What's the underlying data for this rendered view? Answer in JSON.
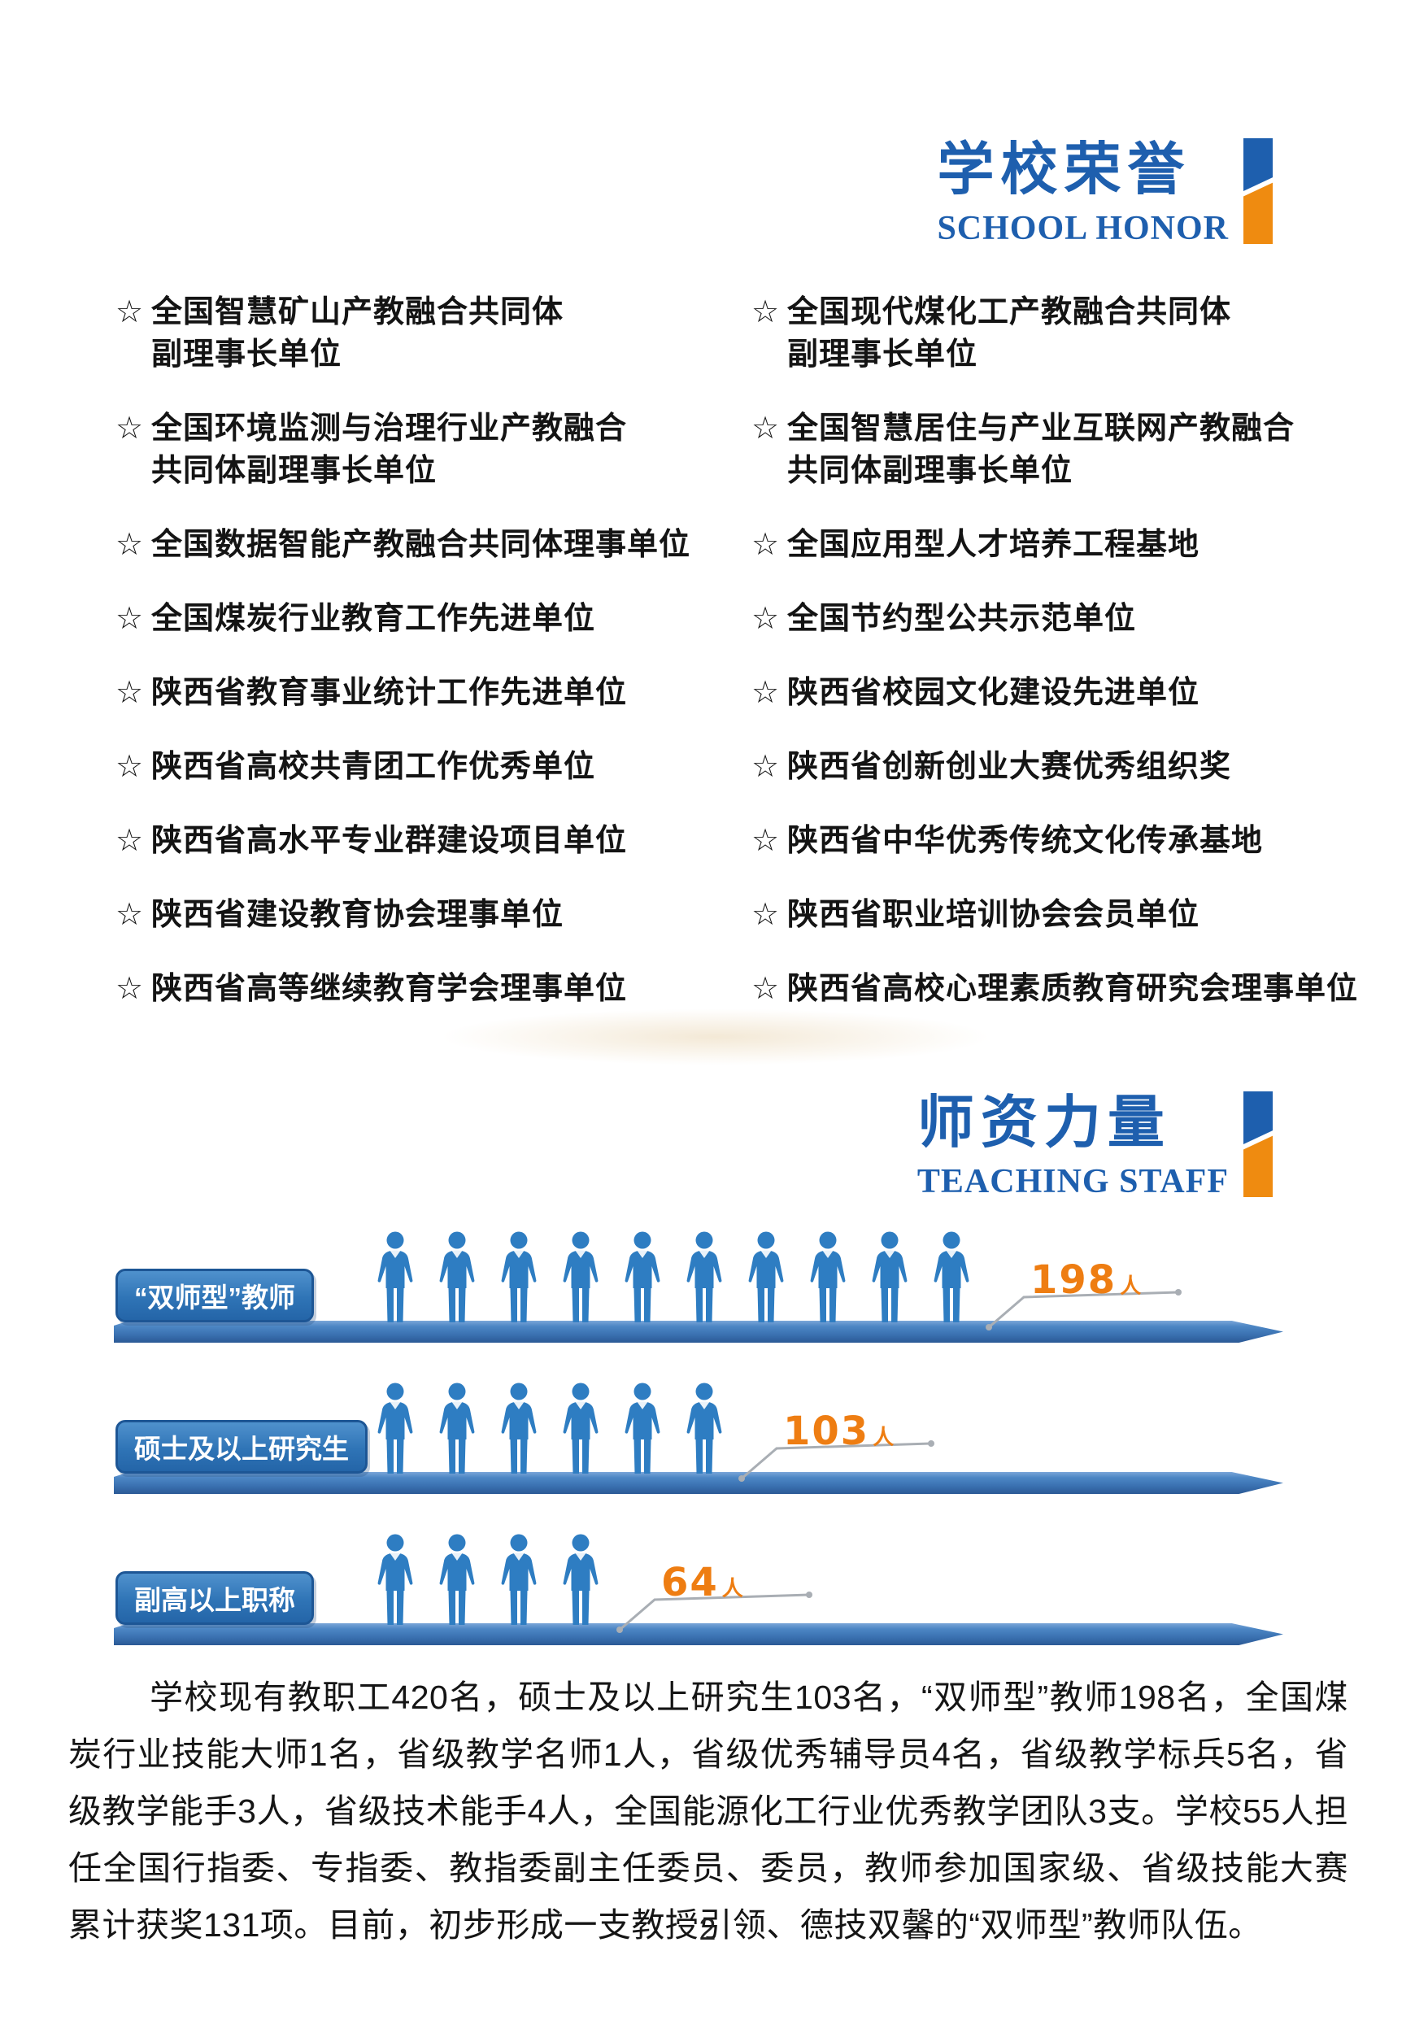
{
  "colors": {
    "accent_blue": "#1e5fae",
    "accent_orange": "#ef8b10",
    "platform_blue": "#3b72b2",
    "icon_blue": "#2e7dc2",
    "value_orange": "#ee7d12",
    "label_text": "#ffffff",
    "body_text": "#151515"
  },
  "honor_section": {
    "title": "学校荣誉",
    "subtitle": "SCHOOL HONOR",
    "bullet": "☆",
    "left_items": [
      [
        "全国智慧矿山产教融合共同体",
        "副理事长单位"
      ],
      [
        "全国环境监测与治理行业产教融合",
        "共同体副理事长单位"
      ],
      [
        "全国数据智能产教融合共同体理事单位"
      ],
      [
        "全国煤炭行业教育工作先进单位"
      ],
      [
        "陕西省教育事业统计工作先进单位"
      ],
      [
        "陕西省高校共青团工作优秀单位"
      ],
      [
        "陕西省高水平专业群建设项目单位"
      ],
      [
        "陕西省建设教育协会理事单位"
      ],
      [
        "陕西省高等继续教育学会理事单位"
      ]
    ],
    "right_items": [
      [
        "全国现代煤化工产教融合共同体",
        "副理事长单位"
      ],
      [
        "全国智慧居住与产业互联网产教融合",
        "共同体副理事长单位"
      ],
      [
        "全国应用型人才培养工程基地"
      ],
      [
        "全国节约型公共示范单位"
      ],
      [
        "陕西省校园文化建设先进单位"
      ],
      [
        "陕西省创新创业大赛优秀组织奖"
      ],
      [
        "陕西省中华优秀传统文化传承基地"
      ],
      [
        "陕西省职业培训协会会员单位"
      ],
      [
        "陕西省高校心理素质教育研究会理事单位"
      ]
    ]
  },
  "staff_section": {
    "title": "师资力量",
    "subtitle": "TEACHING STAFF"
  },
  "chart_data": {
    "type": "bar",
    "variant": "pictogram",
    "categories": [
      "“双师型”教师",
      "硕士及以上研究生",
      "副高以上职称"
    ],
    "values": [
      198,
      103,
      64
    ],
    "unit": "人",
    "icon_counts": [
      10,
      6,
      4
    ],
    "icon": "person-icon",
    "icon_color": "#2e7dc2",
    "value_color": "#ee7d12",
    "legend_position": "none",
    "grid": false
  },
  "paragraph": {
    "text": "学校现有教职工420名，硕士及以上研究生103名，“双师型”教师198名，全国煤炭行业技能大师1名，省级教学名师1人，省级优秀辅导员4名，省级教学标兵5名，省级教学能手3人，省级技术能手4人，全国能源化工行业优秀教学团队3支。学校55人担任全国行指委、专指委、教指委副主任委员、委员，教师参加国家级、省级技能大赛累计获奖131项。目前，初步形成一支教授引领、德技双馨的“双师型”教师队伍。"
  },
  "page": {
    "number": "2"
  }
}
